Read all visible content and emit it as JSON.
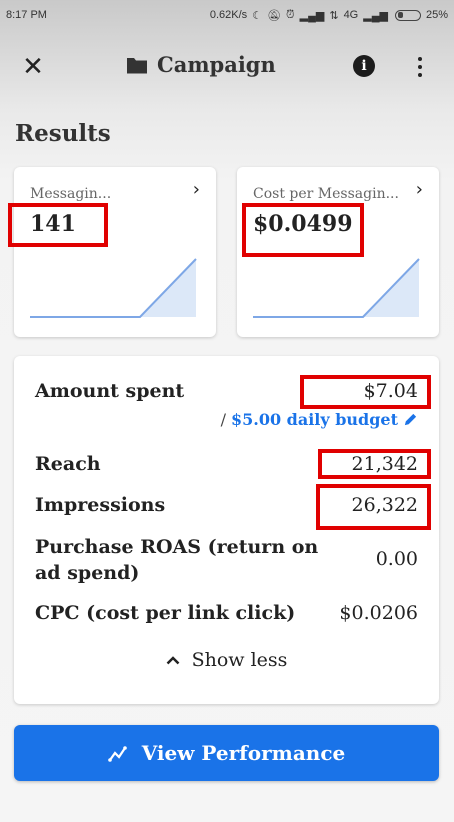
{
  "status_bar": {
    "time": "8:17 PM",
    "speed": "0.62K/s",
    "network": "4G",
    "battery": "25%"
  },
  "header": {
    "title": "Campaign",
    "close_icon": "close-icon",
    "folder_icon": "folder-icon",
    "info_icon": "info-icon",
    "more_icon": "more-vertical-icon"
  },
  "results": {
    "title": "Results",
    "cards": [
      {
        "label": "Messagin...",
        "value": "141"
      },
      {
        "label": "Cost per Messagin...",
        "value": "$0.0499"
      }
    ]
  },
  "stats": {
    "amount_spent_label": "Amount spent",
    "amount_spent_value": "$7.04",
    "budget_slash": "/",
    "budget_text": "$5.00 daily budget",
    "reach_label": "Reach",
    "reach_value": "21,342",
    "impressions_label": "Impressions",
    "impressions_value": "26,322",
    "roas_label_line1": "Purchase ROAS (return on",
    "roas_label_line2": "ad spend)",
    "roas_value": "0.00",
    "cpc_label": "CPC (cost per link click)",
    "cpc_value": "$0.0206",
    "show_less": "Show less"
  },
  "actions": {
    "view_performance": "View Performance"
  },
  "colors": {
    "accent": "#1a73e8",
    "highlight": "#e00000",
    "sparkline": "#7ea7e6"
  }
}
